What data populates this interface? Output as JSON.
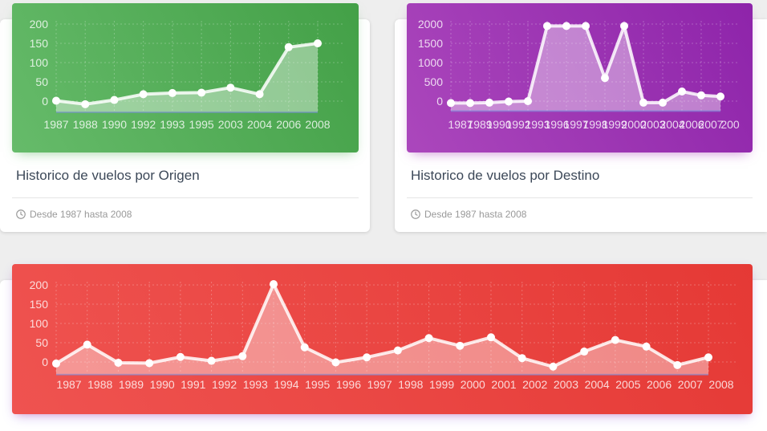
{
  "cards": [
    {
      "title": "Historico de vuelos por Origen",
      "footer": "Desde 1987 hasta 2008",
      "footer_icon": "clock-icon"
    },
    {
      "title": "Historico de vuelos por Destino",
      "footer": "Desde 1987 hasta 2008",
      "footer_icon": "clock-icon"
    }
  ],
  "colors": {
    "green": "#4caf50",
    "purple": "#9c27b0",
    "red": "#f44336",
    "page_bg": "#eeeeee"
  },
  "chart_data": [
    {
      "type": "line",
      "fill": "area",
      "categories": [
        "1987",
        "1988",
        "1990",
        "1992",
        "1993",
        "1995",
        "2003",
        "2004",
        "2006",
        "2008"
      ],
      "values": [
        1,
        -8,
        3,
        18,
        21,
        22,
        35,
        18,
        140,
        150
      ],
      "ylim": [
        0,
        200
      ],
      "yticks": [
        0,
        50,
        100,
        150,
        200
      ],
      "grid": true,
      "title": "",
      "xlabel": "",
      "ylabel": ""
    },
    {
      "type": "line",
      "fill": "area",
      "categories": [
        "1987",
        "1989",
        "1990",
        "1992",
        "1993",
        "1996",
        "1997",
        "1998",
        "1999",
        "2000",
        "2003",
        "2004",
        "2006",
        "2007",
        "200"
      ],
      "values": [
        -50,
        -50,
        -40,
        -10,
        0,
        1950,
        1950,
        1950,
        600,
        1950,
        -40,
        -40,
        250,
        150,
        120
      ],
      "ylim": [
        0,
        2000
      ],
      "yticks": [
        0,
        500,
        1000,
        1500,
        2000
      ],
      "grid": true,
      "title": "",
      "xlabel": "",
      "ylabel": ""
    },
    {
      "type": "line",
      "fill": "area",
      "categories": [
        "1987",
        "1988",
        "1989",
        "1990",
        "1991",
        "1992",
        "1993",
        "1994",
        "1995",
        "1996",
        "1997",
        "1998",
        "1999",
        "2000",
        "2001",
        "2002",
        "2003",
        "2004",
        "2005",
        "2006",
        "2007",
        "2008"
      ],
      "values": [
        -4,
        45,
        -2,
        -3,
        13,
        3,
        15,
        202,
        38,
        -1,
        12,
        30,
        62,
        42,
        64,
        10,
        -12,
        27,
        57,
        40,
        -8,
        12
      ],
      "ylim": [
        0,
        200
      ],
      "yticks": [
        0,
        50,
        100,
        150,
        200
      ],
      "grid": true,
      "title": "",
      "xlabel": "",
      "ylabel": ""
    }
  ]
}
